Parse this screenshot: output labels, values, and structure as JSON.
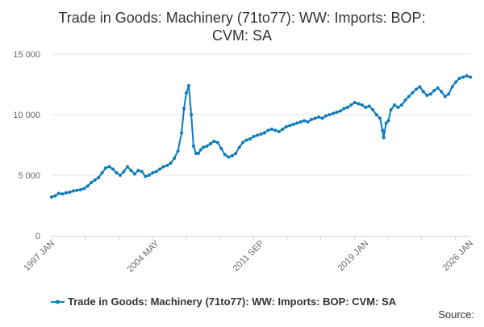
{
  "chart_data": {
    "type": "line",
    "title": "Trade in Goods: Machinery (71to77): WW: Imports: BOP: CVM: SA",
    "title_lines": [
      "Trade in Goods: Machinery (71to77): WW: Imports: BOP:",
      "CVM: SA"
    ],
    "xlabel": "",
    "ylabel": "",
    "ylim": [
      0,
      15000
    ],
    "yticks": [
      0,
      5000,
      10000,
      15000
    ],
    "ytick_labels": [
      "0",
      "5 000",
      "10 000",
      "15 000"
    ],
    "x_start": "1997 JAN",
    "x_end": "2026 JAN",
    "xtick_labels": [
      "1997 JAN",
      "2004 MAY",
      "2011 SEP",
      "2019 JAN",
      "2026 JAN"
    ],
    "grid": "horizontal",
    "legend_position": "bottom",
    "series": [
      {
        "name": "Trade in Goods: Machinery (71to77): WW: Imports: BOP: CVM: SA",
        "color": "#0b7cbb",
        "x": [
          1997.0,
          1997.25,
          1997.5,
          1997.75,
          1998.0,
          1998.25,
          1998.5,
          1998.75,
          1999.0,
          1999.25,
          1999.5,
          1999.75,
          2000.0,
          2000.25,
          2000.5,
          2000.75,
          2001.0,
          2001.25,
          2001.5,
          2001.75,
          2002.0,
          2002.25,
          2002.5,
          2002.75,
          2003.0,
          2003.25,
          2003.5,
          2003.75,
          2004.0,
          2004.25,
          2004.5,
          2004.75,
          2005.0,
          2005.25,
          2005.5,
          2005.75,
          2006.0,
          2006.17,
          2006.33,
          2006.5,
          2006.67,
          2006.83,
          2007.0,
          2007.17,
          2007.33,
          2007.5,
          2007.75,
          2008.0,
          2008.25,
          2008.5,
          2008.75,
          2009.0,
          2009.25,
          2009.5,
          2009.75,
          2010.0,
          2010.25,
          2010.5,
          2010.75,
          2011.0,
          2011.25,
          2011.5,
          2011.75,
          2012.0,
          2012.25,
          2012.5,
          2012.75,
          2013.0,
          2013.25,
          2013.5,
          2013.75,
          2014.0,
          2014.25,
          2014.5,
          2014.75,
          2015.0,
          2015.25,
          2015.5,
          2015.75,
          2016.0,
          2016.25,
          2016.5,
          2016.75,
          2017.0,
          2017.25,
          2017.5,
          2017.75,
          2018.0,
          2018.25,
          2018.5,
          2018.75,
          2019.0,
          2019.25,
          2019.5,
          2019.75,
          2019.92,
          2020.0,
          2020.17,
          2020.33,
          2020.5,
          2020.75,
          2021.0,
          2021.25,
          2021.5,
          2021.75,
          2022.0,
          2022.25,
          2022.5,
          2022.75,
          2023.0,
          2023.25,
          2023.5,
          2023.75,
          2024.0,
          2024.25,
          2024.5,
          2024.75,
          2025.0,
          2025.25,
          2025.5,
          2025.75,
          2026.0
        ],
        "values": [
          3200,
          3300,
          3500,
          3450,
          3550,
          3600,
          3700,
          3750,
          3800,
          3900,
          4100,
          4400,
          4600,
          4800,
          5200,
          5600,
          5700,
          5500,
          5200,
          5000,
          5300,
          5700,
          5400,
          5100,
          5400,
          5300,
          4900,
          5000,
          5200,
          5300,
          5500,
          5700,
          5800,
          6000,
          6400,
          7000,
          8500,
          10500,
          11800,
          12400,
          10000,
          7400,
          6800,
          6800,
          7100,
          7300,
          7400,
          7600,
          7800,
          7700,
          7200,
          6700,
          6500,
          6600,
          6800,
          7300,
          7700,
          7900,
          8000,
          8200,
          8300,
          8400,
          8500,
          8700,
          8800,
          8700,
          8600,
          8800,
          9000,
          9100,
          9200,
          9300,
          9400,
          9500,
          9400,
          9600,
          9700,
          9800,
          9700,
          9900,
          10000,
          10100,
          10200,
          10300,
          10500,
          10600,
          10800,
          11000,
          10900,
          10800,
          10600,
          10700,
          10400,
          10000,
          9700,
          8700,
          8100,
          9300,
          9500,
          10400,
          10800,
          10600,
          10800,
          11200,
          11500,
          11800,
          12100,
          12300,
          11900,
          11600,
          11700,
          12000,
          12200,
          11900,
          11500,
          11700,
          12300,
          12700,
          13000,
          13100,
          13200,
          13100
        ]
      }
    ]
  },
  "legend": {
    "label": "Trade in Goods: Machinery (71to77): WW: Imports: BOP: CVM: SA"
  },
  "source": {
    "label": "Source:"
  }
}
